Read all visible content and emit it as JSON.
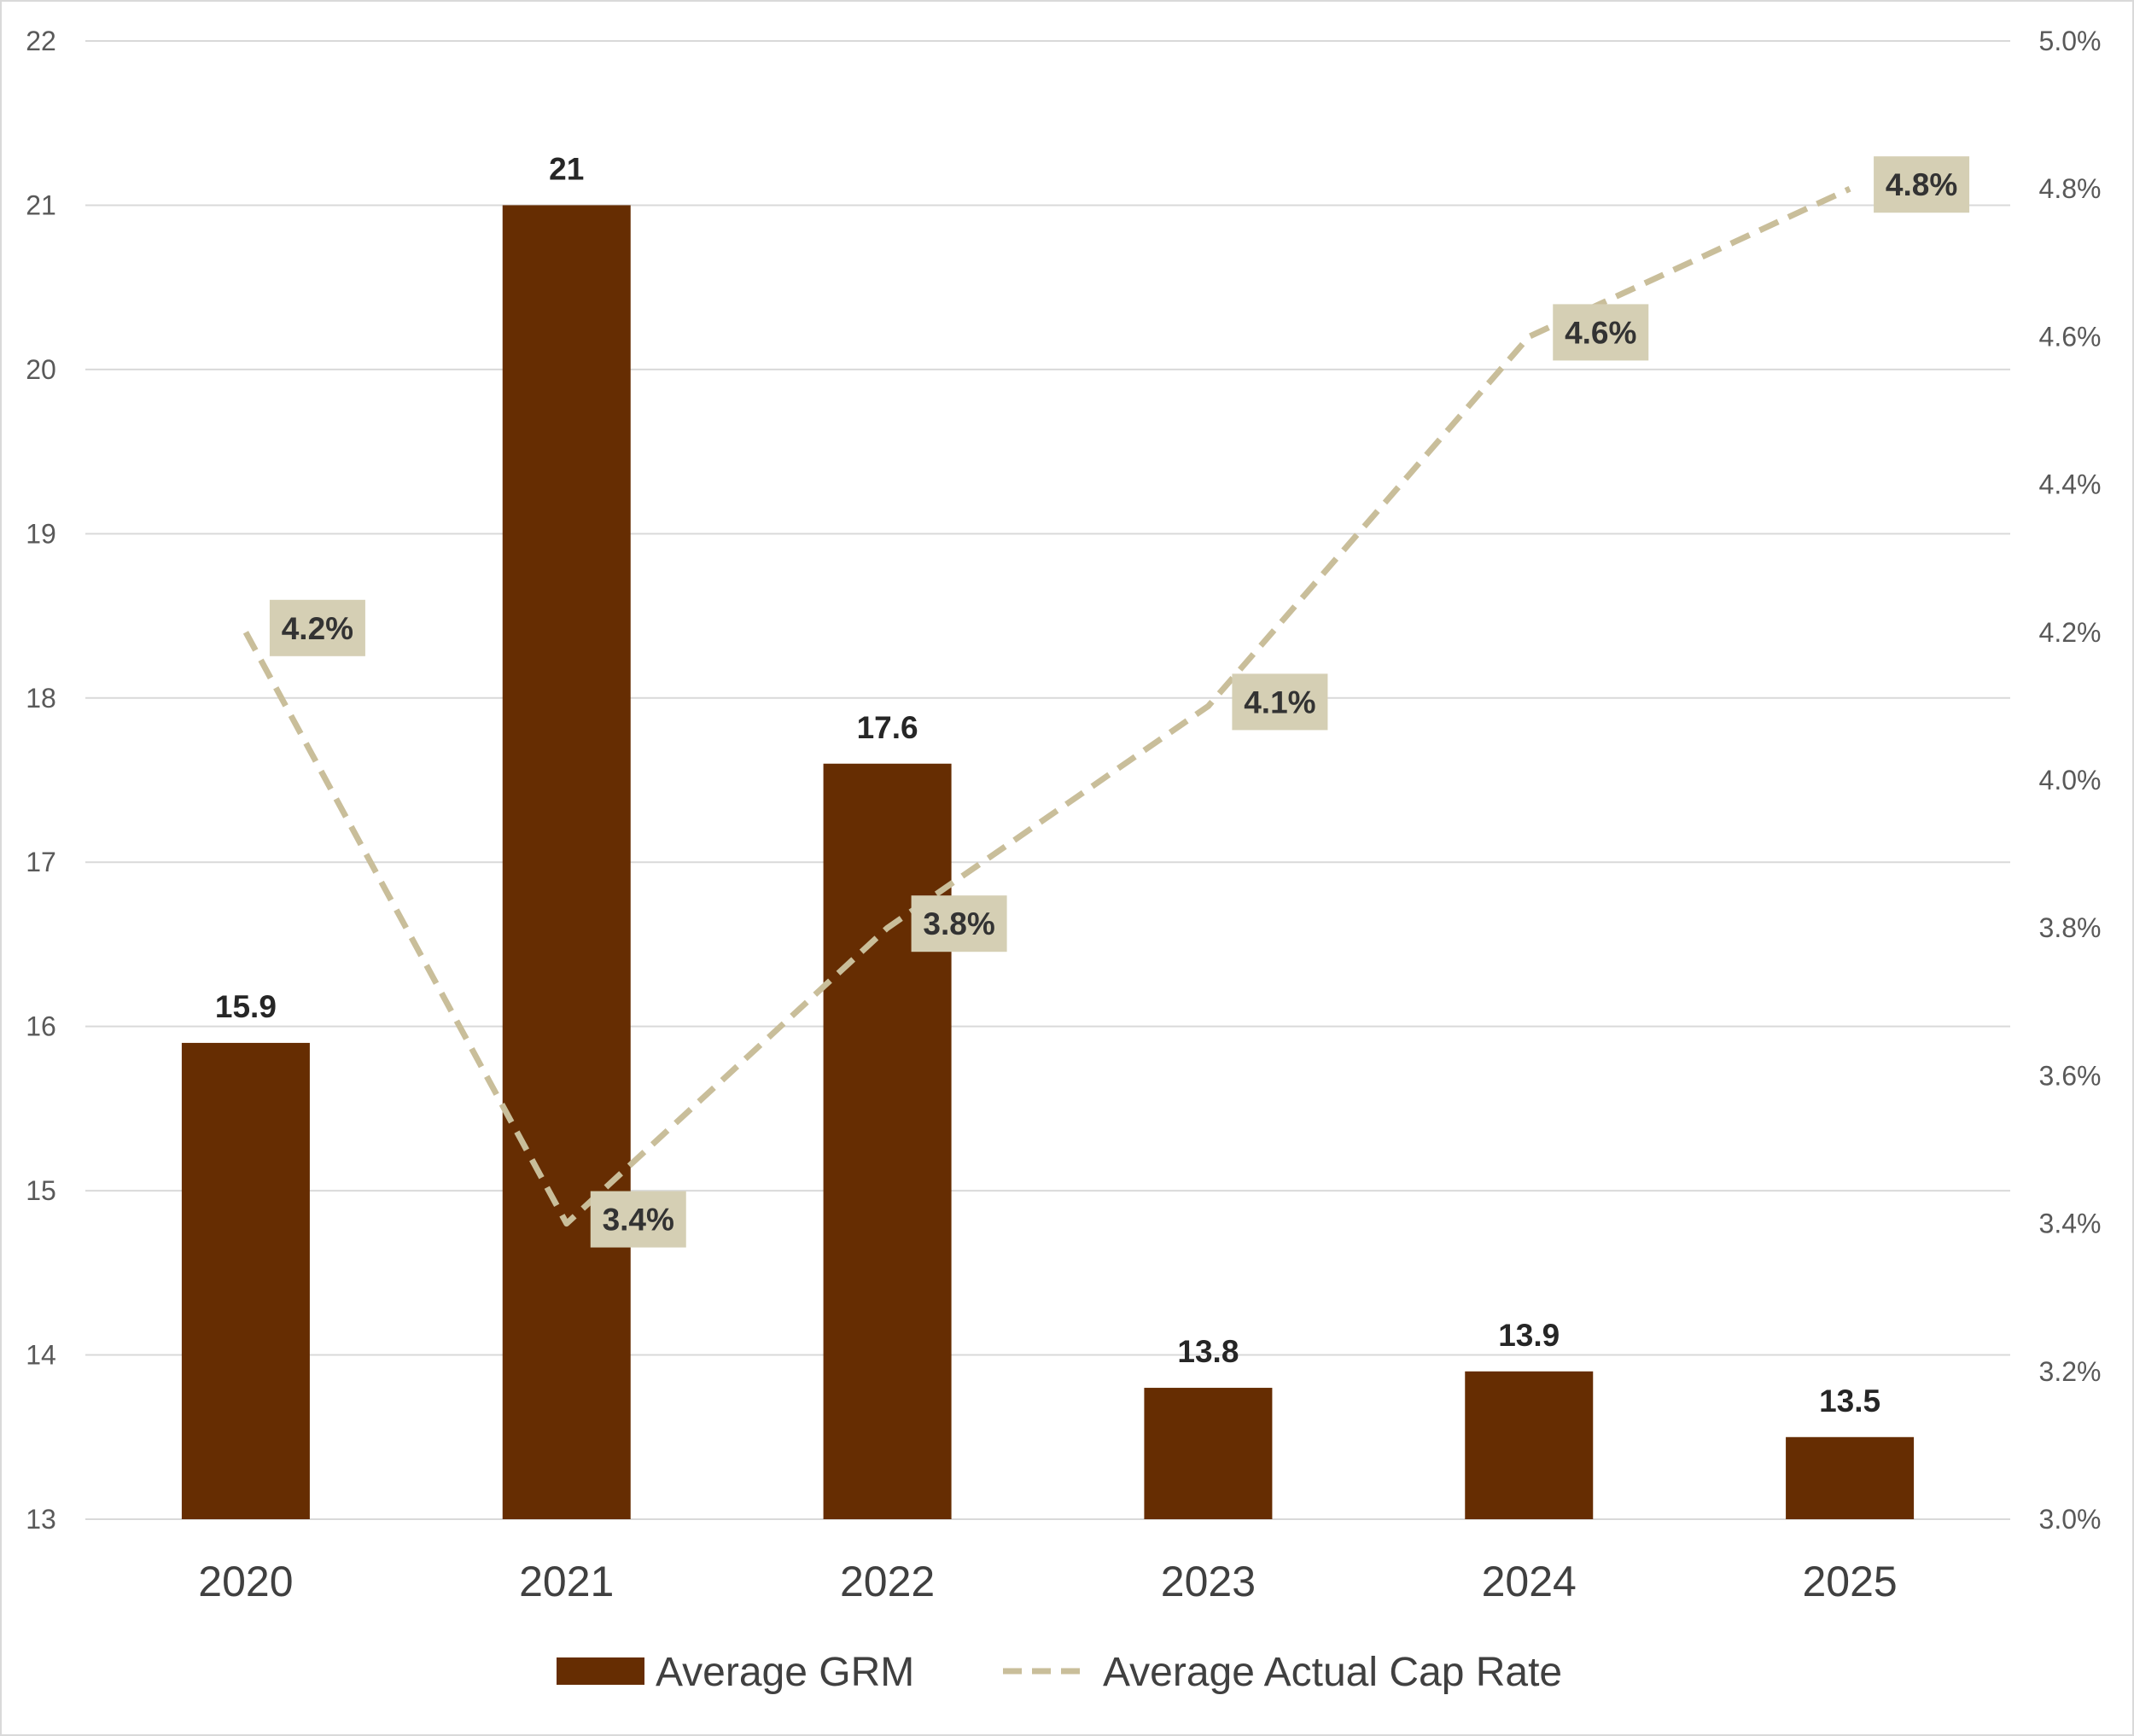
{
  "chart_data": {
    "type": "bar",
    "categories": [
      "2020",
      "2021",
      "2022",
      "2023",
      "2024",
      "2025"
    ],
    "series": [
      {
        "name": "Average GRM",
        "type": "bar",
        "axis": "left",
        "values": [
          15.9,
          21,
          17.6,
          13.8,
          13.9,
          13.5
        ],
        "labels": [
          "15.9",
          "21",
          "17.6",
          "13.8",
          "13.9",
          "13.5"
        ],
        "color": "#662D02"
      },
      {
        "name": "Average Actual Cap Rate",
        "type": "line",
        "style": "dashed",
        "axis": "right",
        "values": [
          4.2,
          3.4,
          3.8,
          4.1,
          4.6,
          4.8
        ],
        "labels": [
          "4.2%",
          "3.4%",
          "3.8%",
          "4.1%",
          "4.6%",
          "4.8%"
        ],
        "color": "#C9BE9A",
        "label_background": "#D5CFB4"
      }
    ],
    "y_left": {
      "range": [
        13,
        22
      ],
      "ticks": [
        "13",
        "14",
        "15",
        "16",
        "17",
        "18",
        "19",
        "20",
        "21",
        "22"
      ]
    },
    "y_right": {
      "range": [
        3.0,
        5.0
      ],
      "ticks": [
        "3.0%",
        "3.2%",
        "3.4%",
        "3.6%",
        "3.8%",
        "4.0%",
        "4.2%",
        "4.4%",
        "4.6%",
        "4.8%",
        "5.0%"
      ]
    },
    "grid": true,
    "gridline_color": "#D9D9D9",
    "legend": "bottom-center"
  }
}
